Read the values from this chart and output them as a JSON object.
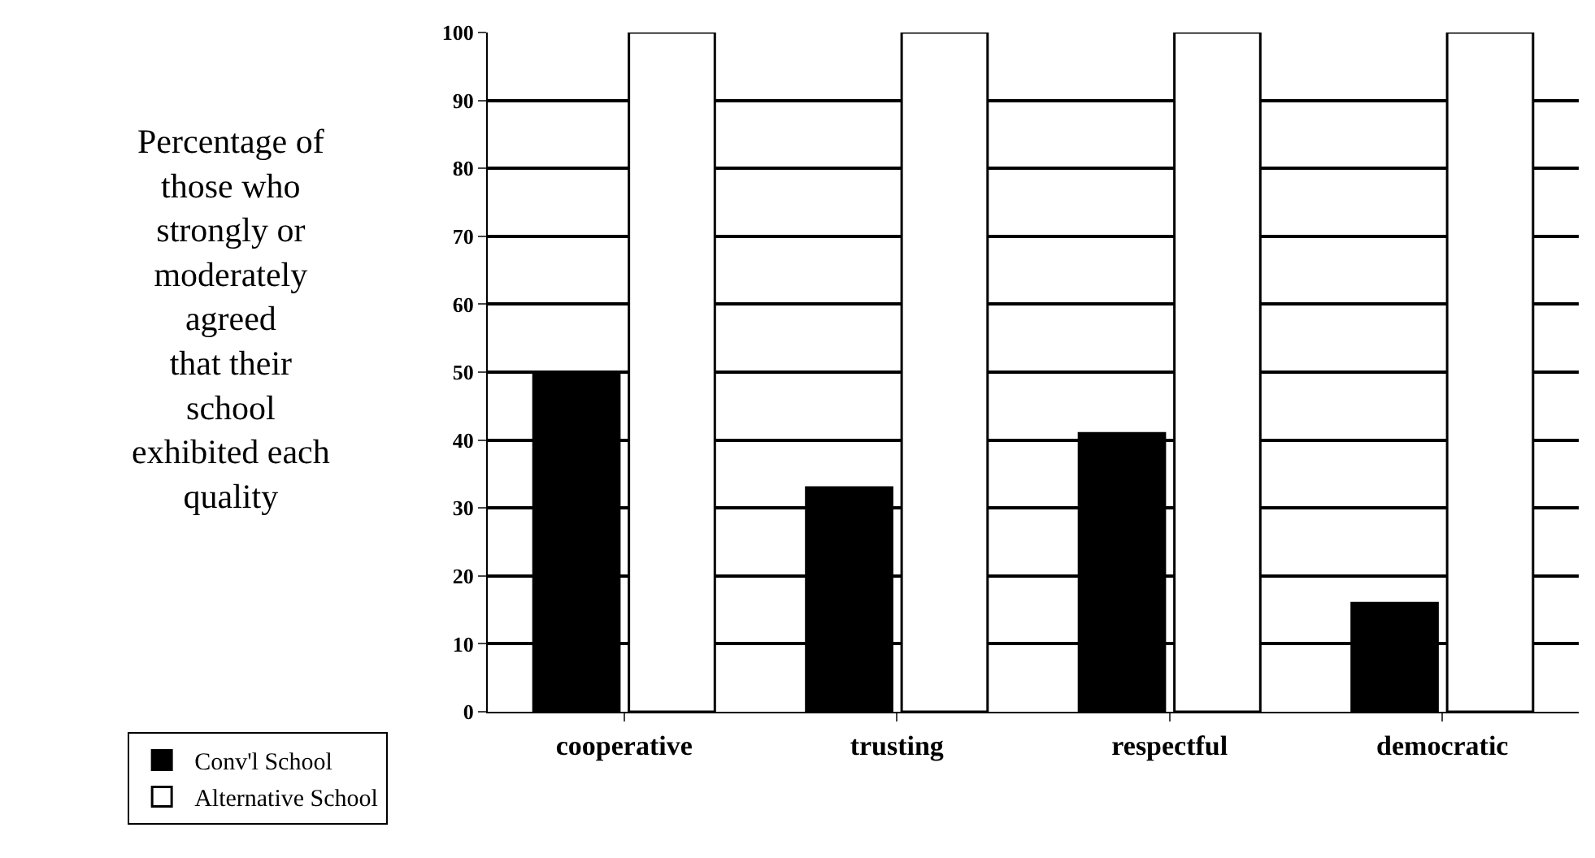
{
  "chart_data": {
    "type": "bar",
    "ylabel": "Percentage of\nthose who\nstrongly or\nmoderately\nagreed\nthat their\nschool\nexhibited each\nquality",
    "categories": [
      "cooperative",
      "trusting",
      "respectful",
      "democratic"
    ],
    "series": [
      {
        "name": "Conv'l School",
        "color": "#000000",
        "values": [
          50,
          33,
          41,
          16
        ]
      },
      {
        "name": "Alternative School",
        "color": "#ffffff",
        "values": [
          100,
          100,
          100,
          100
        ]
      }
    ],
    "ylim": [
      0,
      100
    ],
    "yticks": [
      0,
      10,
      20,
      30,
      40,
      50,
      60,
      70,
      80,
      90,
      100
    ],
    "grid": "y",
    "legend": "bottom left"
  }
}
